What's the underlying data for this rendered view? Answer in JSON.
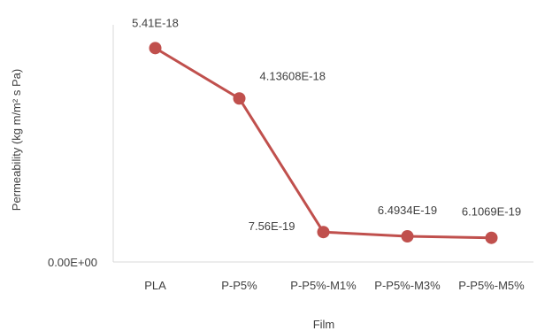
{
  "chart_data": {
    "type": "line",
    "title": "",
    "xlabel": "Film",
    "ylabel": "Permeability (kg m/m² s Pa)",
    "categories": [
      "PLA",
      "P-P5%",
      "P-P5%-M1%",
      "P-P5%-M3%",
      "P-P5%-M5%"
    ],
    "series": [
      {
        "name": "",
        "values": [
          5.41e-18,
          4.13608e-18,
          7.56e-19,
          6.4934e-19,
          6.1069e-19
        ],
        "data_labels": [
          "5.41E-18",
          "4.13608E-18",
          "7.56E-19",
          "6.4934E-19",
          "6.1069E-19"
        ],
        "color": "#c0504d"
      }
    ],
    "ylim": [
      0,
      6e-18
    ],
    "y_tick_labels": [
      "0.00E+00"
    ],
    "grid": false,
    "legend": "none"
  }
}
